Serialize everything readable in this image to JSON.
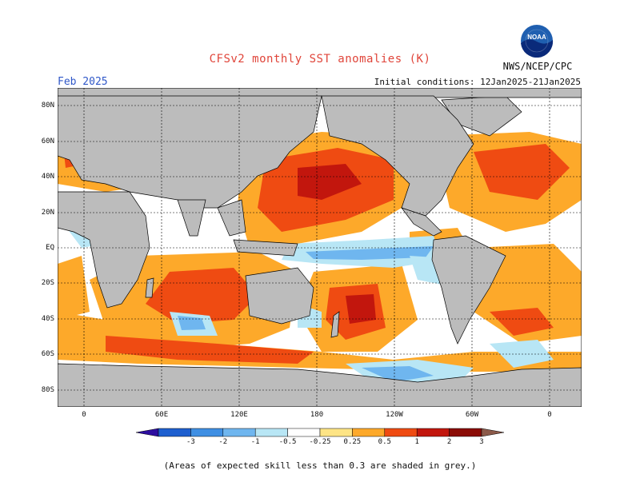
{
  "header": {
    "title": "CFSv2 monthly SST anomalies (K)",
    "month": "Feb 2025",
    "initial_conditions": "Initial conditions: 12Jan2025-21Jan2025",
    "organization": "NWS/NCEP/CPC",
    "logo_text": "NOAA"
  },
  "map": {
    "lat_labels": [
      "80N",
      "60N",
      "40N",
      "20N",
      "EQ",
      "20S",
      "40S",
      "60S",
      "80S"
    ],
    "lon_labels": [
      "0",
      "60E",
      "120E",
      "180",
      "120W",
      "60W",
      "0"
    ],
    "land_color": "#bcbcbc"
  },
  "colorbar": {
    "ticks": [
      "-3",
      "-2",
      "-1",
      "-0.5",
      "-0.25",
      "0.25",
      "0.5",
      "1",
      "2",
      "3"
    ],
    "colors": [
      "#2d0ea0",
      "#1e5fcf",
      "#3f8fe3",
      "#6fb6ef",
      "#b8e6f5",
      "#ffffff",
      "#fde485",
      "#fda92a",
      "#ef4b12",
      "#c2160d",
      "#8b0c06",
      "#8c5a4a"
    ]
  },
  "footnote": "(Areas of expected skill less than 0.3 are shaded in grey.)"
}
